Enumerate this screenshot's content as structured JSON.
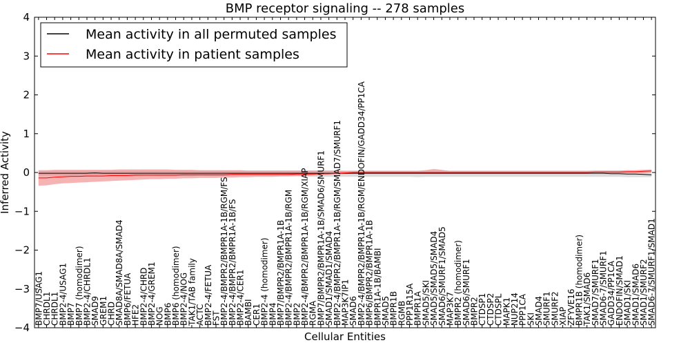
{
  "chart_data": {
    "type": "line",
    "title": "BMP receptor signaling -- 278 samples",
    "xlabel": "Cellular Entities",
    "ylabel": "Inferred Activity",
    "ylim": [
      -4,
      4
    ],
    "yticks": [
      -4,
      -3,
      -2,
      -1,
      0,
      1,
      2,
      3,
      4
    ],
    "ytick_labels": [
      "−4",
      "−3",
      "−2",
      "−1",
      "0",
      "1",
      "2",
      "3",
      "4"
    ],
    "legend_position": "top-left",
    "categories": [
      "BMP7/USAG1",
      "CHRDL1",
      "CHRDL1",
      "BMP2-4/USAG1",
      "BMP7",
      "BMP7 (homodimer)",
      "BMP2-4/CHRDL1",
      "SMAD9",
      "GREM1",
      "CHRD",
      "SMAD8A/SMAD8A/SMAD4",
      "BMP6/FETUA",
      "HFE2",
      "BMP2-4/CHRD",
      "BMP2-4/GREM1",
      "NOG",
      "BMP6",
      "BMP6 (homodimer)",
      "BMP2-4/NOG",
      "TAK1/TAB family",
      "ACTC",
      "BMP2-4/FETUA",
      "FST",
      "BMP2-4/BMPR2/BMPR1A-1B/RGM/FS",
      "BMP2-4/BMPR2/BMPR1A-1B/FS",
      "BMP2-4/CER1",
      "BAMBI",
      "CER1",
      "BMP2-4 (homodimer)",
      "BMP4",
      "BMP7/BMPR2/BMPR1A-1B",
      "BMP2-4/BMPR2/BMPR1A-1B/RGM",
      "BMP2",
      "BMP2-4/BMPR2/BMPR1A-1B/RGM/XIAP",
      "RGMA",
      "BMP7/BMPR2/BMPR1A-1B/SMAD6/SMURF1",
      "SMAD1/SMAD1/SMAD4",
      "BMP2-4/BMPR2/BMPR1A-1B/RGM/SMAD7/SMURF1",
      "MAP3K7IP1",
      "SMAD6",
      "BMP2-4/BMPR2/BMPR1A-1B/RGM/ENDOFIN/GADD34/PP1CA",
      "BMP6/BMPR2/BMPR1A-1B",
      "BMPR1A-1B/BAMBI",
      "SMAD5",
      "BMPR1B",
      "RGMB",
      "PPP1R15A",
      "BMPR1A",
      "SMAD5/SKI",
      "SMAD5/SMAD5/SMAD4",
      "SMAD6/SMURF1/SMAD5",
      "MAP3K7",
      "BMPR2 (homodimer)",
      "SMAD6/SMURF1",
      "BMPR2",
      "CTDSP1",
      "CTDSP2",
      "CTDSPL",
      "MAPK1",
      "NUP214",
      "PPP1CA",
      "SKI",
      "SMAD4",
      "SMURF1",
      "SMURF2",
      "XIAP",
      "ZFYVE16",
      "BMPR1B (homodimer)",
      "TAK1/SMAD6",
      "SMAD7/SMURF1",
      "SMAD6-7/SMURF1",
      "GADD34/PP1CA",
      "ENDOFIN/SMAD1",
      "SMAD1/SKI",
      "SMAD1/SMAD6",
      "SMAD1/SMURF2",
      "SMAD6-7/SMURF1/SMAD1"
    ],
    "series": [
      {
        "name": "Mean activity in all permuted samples",
        "color": "#000000",
        "band_color": "#c0c0c0",
        "values": [
          -0.02,
          -0.02,
          -0.02,
          -0.02,
          -0.02,
          -0.02,
          -0.02,
          -0.01,
          -0.02,
          -0.02,
          -0.02,
          -0.02,
          -0.02,
          -0.02,
          -0.02,
          -0.02,
          -0.02,
          -0.02,
          -0.02,
          -0.02,
          -0.02,
          -0.02,
          -0.02,
          -0.02,
          -0.02,
          -0.02,
          -0.02,
          -0.02,
          -0.02,
          -0.02,
          -0.02,
          -0.02,
          -0.02,
          -0.02,
          -0.02,
          -0.02,
          -0.02,
          -0.02,
          -0.02,
          -0.02,
          -0.02,
          -0.02,
          -0.02,
          -0.02,
          -0.02,
          -0.02,
          -0.02,
          -0.02,
          -0.02,
          -0.02,
          -0.02,
          -0.02,
          -0.02,
          -0.02,
          -0.02,
          -0.02,
          -0.02,
          -0.02,
          -0.02,
          -0.02,
          -0.02,
          -0.02,
          -0.02,
          -0.02,
          -0.02,
          -0.02,
          -0.02,
          -0.02,
          -0.02,
          -0.02,
          -0.02,
          -0.03,
          -0.03,
          -0.04,
          -0.04,
          -0.05,
          -0.06
        ],
        "lower": [
          -0.08,
          -0.08,
          -0.08,
          -0.09,
          -0.09,
          -0.09,
          -0.09,
          -0.08,
          -0.08,
          -0.08,
          -0.09,
          -0.09,
          -0.09,
          -0.08,
          -0.08,
          -0.09,
          -0.09,
          -0.09,
          -0.09,
          -0.1,
          -0.08,
          -0.09,
          -0.09,
          -0.09,
          -0.09,
          -0.09,
          -0.09,
          -0.09,
          -0.09,
          -0.09,
          -0.1,
          -0.1,
          -0.1,
          -0.1,
          -0.11,
          -0.11,
          -0.11,
          -0.11,
          -0.11,
          -0.11,
          -0.11,
          -0.11,
          -0.11,
          -0.11,
          -0.11,
          -0.11,
          -0.11,
          -0.12,
          -0.11,
          -0.11,
          -0.11,
          -0.11,
          -0.11,
          -0.11,
          -0.11,
          -0.11,
          -0.11,
          -0.11,
          -0.11,
          -0.11,
          -0.11,
          -0.11,
          -0.11,
          -0.11,
          -0.11,
          -0.11,
          -0.11,
          -0.11,
          -0.11,
          -0.11,
          -0.11,
          -0.11,
          -0.11,
          -0.12,
          -0.12,
          -0.12,
          -0.12
        ],
        "upper": [
          0.04,
          0.04,
          0.05,
          0.05,
          0.05,
          0.05,
          0.05,
          0.05,
          0.05,
          0.05,
          0.05,
          0.05,
          0.05,
          0.05,
          0.05,
          0.05,
          0.05,
          0.05,
          0.05,
          0.05,
          0.05,
          0.05,
          0.05,
          0.05,
          0.05,
          0.05,
          0.05,
          0.05,
          0.05,
          0.05,
          0.05,
          0.05,
          0.05,
          0.05,
          0.05,
          0.05,
          0.05,
          0.05,
          0.05,
          0.05,
          0.05,
          0.05,
          0.05,
          0.05,
          0.05,
          0.05,
          0.05,
          0.05,
          0.05,
          0.05,
          0.05,
          0.05,
          0.05,
          0.05,
          0.05,
          0.05,
          0.05,
          0.05,
          0.05,
          0.05,
          0.05,
          0.05,
          0.05,
          0.05,
          0.05,
          0.05,
          0.05,
          0.05,
          0.05,
          0.05,
          0.05,
          0.05,
          0.05,
          0.05,
          0.05,
          0.05,
          0.05
        ]
      },
      {
        "name": "Mean activity in patient samples",
        "color": "#ff0000",
        "band_color": "#f08080",
        "values": [
          -0.14,
          -0.14,
          -0.12,
          -0.11,
          -0.1,
          -0.1,
          -0.09,
          -0.09,
          -0.09,
          -0.08,
          -0.08,
          -0.08,
          -0.07,
          -0.07,
          -0.07,
          -0.07,
          -0.07,
          -0.07,
          -0.06,
          -0.06,
          -0.06,
          -0.06,
          -0.06,
          -0.06,
          -0.05,
          -0.05,
          -0.05,
          -0.05,
          -0.05,
          -0.05,
          -0.05,
          -0.05,
          -0.04,
          -0.04,
          -0.04,
          -0.03,
          -0.03,
          -0.02,
          -0.01,
          0.0,
          0.0,
          0.0,
          0.0,
          0.0,
          0.0,
          0.0,
          0.0,
          0.0,
          0.0,
          0.0,
          0.0,
          0.0,
          0.0,
          0.0,
          0.0,
          0.0,
          0.0,
          0.0,
          0.0,
          0.0,
          0.0,
          0.0,
          0.0,
          0.0,
          0.0,
          0.0,
          0.0,
          0.0,
          0.0,
          0.01,
          0.01,
          0.01,
          0.01,
          0.02,
          0.02,
          0.03,
          0.04
        ],
        "lower": [
          -0.34,
          -0.33,
          -0.3,
          -0.28,
          -0.27,
          -0.26,
          -0.25,
          -0.24,
          -0.23,
          -0.22,
          -0.21,
          -0.2,
          -0.19,
          -0.18,
          -0.17,
          -0.17,
          -0.16,
          -0.16,
          -0.15,
          -0.15,
          -0.14,
          -0.14,
          -0.14,
          -0.13,
          -0.13,
          -0.12,
          -0.12,
          -0.11,
          -0.11,
          -0.11,
          -0.1,
          -0.1,
          -0.09,
          -0.09,
          -0.08,
          -0.07,
          -0.06,
          -0.05,
          -0.04,
          -0.03,
          -0.03,
          -0.03,
          -0.03,
          -0.03,
          -0.03,
          -0.03,
          -0.03,
          -0.03,
          -0.03,
          -0.03,
          -0.03,
          -0.03,
          -0.03,
          -0.03,
          -0.03,
          -0.03,
          -0.03,
          -0.03,
          -0.03,
          -0.03,
          -0.03,
          -0.03,
          -0.03,
          -0.03,
          -0.03,
          -0.03,
          -0.03,
          -0.03,
          -0.03,
          -0.02,
          -0.02,
          -0.02,
          -0.02,
          -0.02,
          -0.02,
          -0.01,
          0.0
        ],
        "upper": [
          0.06,
          0.06,
          0.07,
          0.07,
          0.07,
          0.07,
          0.07,
          0.07,
          0.07,
          0.07,
          0.08,
          0.08,
          0.08,
          0.08,
          0.08,
          0.08,
          0.08,
          0.07,
          0.07,
          0.07,
          0.06,
          0.06,
          0.06,
          0.06,
          0.06,
          0.06,
          0.05,
          0.05,
          0.05,
          0.05,
          0.05,
          0.05,
          0.05,
          0.05,
          0.05,
          0.05,
          0.05,
          0.05,
          0.04,
          0.04,
          0.04,
          0.04,
          0.04,
          0.04,
          0.04,
          0.04,
          0.04,
          0.04,
          0.06,
          0.09,
          0.07,
          0.04,
          0.04,
          0.04,
          0.04,
          0.04,
          0.04,
          0.04,
          0.04,
          0.04,
          0.04,
          0.04,
          0.04,
          0.04,
          0.04,
          0.04,
          0.04,
          0.04,
          0.04,
          0.05,
          0.05,
          0.05,
          0.05,
          0.06,
          0.06,
          0.07,
          0.08
        ]
      }
    ]
  }
}
